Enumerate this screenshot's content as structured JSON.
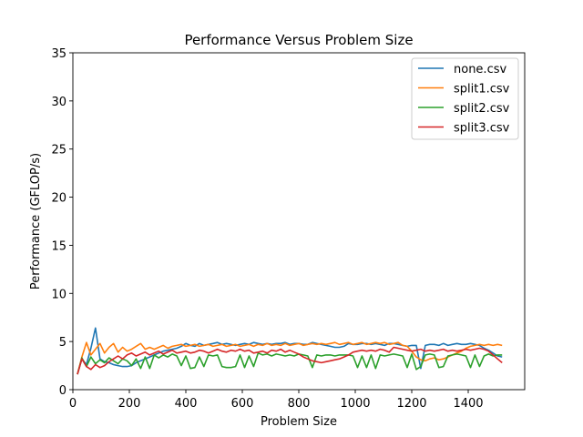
{
  "chart_data": {
    "type": "line",
    "title": "Performance Versus Problem Size",
    "xlabel": "Problem Size",
    "ylabel": "Performance (GFLOP/s)",
    "xlim": [
      0,
      1600
    ],
    "ylim": [
      0,
      35
    ],
    "xticks": [
      0,
      200,
      400,
      600,
      800,
      1000,
      1200,
      1400
    ],
    "yticks": [
      0,
      5,
      10,
      15,
      20,
      25,
      30,
      35
    ],
    "grid": false,
    "legend_position": "top-right",
    "x": [
      16,
      32,
      48,
      64,
      80,
      96,
      112,
      128,
      144,
      160,
      176,
      192,
      208,
      224,
      240,
      256,
      272,
      288,
      304,
      320,
      336,
      352,
      368,
      384,
      400,
      416,
      432,
      448,
      464,
      480,
      496,
      512,
      528,
      544,
      560,
      576,
      592,
      608,
      624,
      640,
      656,
      672,
      688,
      704,
      720,
      736,
      752,
      768,
      784,
      800,
      816,
      832,
      848,
      864,
      880,
      896,
      912,
      928,
      944,
      960,
      976,
      992,
      1008,
      1024,
      1040,
      1056,
      1072,
      1088,
      1104,
      1120,
      1136,
      1152,
      1168,
      1184,
      1200,
      1216,
      1232,
      1248,
      1264,
      1280,
      1296,
      1312,
      1328,
      1344,
      1360,
      1376,
      1392,
      1408,
      1424,
      1440,
      1456,
      1472,
      1488,
      1504,
      1520
    ],
    "series": [
      {
        "name": "none.csv",
        "color": "#1f77b4",
        "values": [
          1.6,
          3.2,
          2.6,
          4.3,
          6.4,
          3.2,
          2.9,
          2.8,
          2.6,
          2.5,
          2.4,
          2.4,
          2.5,
          2.8,
          3.0,
          3.2,
          3.4,
          3.6,
          3.8,
          4.0,
          4.1,
          4.2,
          4.3,
          4.5,
          4.8,
          4.6,
          4.5,
          4.8,
          4.6,
          4.7,
          4.8,
          4.9,
          4.7,
          4.8,
          4.7,
          4.6,
          4.7,
          4.8,
          4.7,
          4.9,
          4.8,
          4.7,
          4.8,
          4.7,
          4.8,
          4.8,
          4.9,
          4.7,
          4.8,
          4.8,
          4.7,
          4.7,
          4.9,
          4.8,
          4.7,
          4.6,
          4.5,
          4.4,
          4.4,
          4.5,
          4.8,
          4.7,
          4.7,
          4.8,
          4.8,
          4.7,
          4.8,
          4.7,
          4.6,
          4.8,
          4.8,
          4.7,
          4.6,
          4.5,
          4.6,
          4.6,
          2.2,
          4.6,
          4.7,
          4.7,
          4.6,
          4.8,
          4.6,
          4.7,
          4.8,
          4.7,
          4.7,
          4.8,
          4.7,
          4.6,
          4.3,
          4.1,
          3.8,
          3.5,
          3.4
        ]
      },
      {
        "name": "split1.csv",
        "color": "#ff7f0e",
        "values": [
          1.6,
          3.4,
          4.9,
          3.6,
          4.2,
          4.8,
          3.8,
          4.4,
          4.8,
          3.9,
          4.4,
          4.0,
          4.2,
          4.5,
          4.8,
          4.2,
          4.4,
          4.2,
          4.4,
          4.6,
          4.3,
          4.5,
          4.6,
          4.7,
          4.5,
          4.6,
          4.7,
          4.5,
          4.6,
          4.7,
          4.5,
          4.6,
          4.7,
          4.5,
          4.6,
          4.7,
          4.5,
          4.6,
          4.7,
          4.5,
          4.7,
          4.6,
          4.8,
          4.6,
          4.7,
          4.6,
          4.8,
          4.6,
          4.7,
          4.8,
          4.6,
          4.7,
          4.8,
          4.7,
          4.8,
          4.7,
          4.8,
          4.9,
          4.7,
          4.8,
          4.9,
          4.7,
          4.8,
          4.9,
          4.7,
          4.8,
          4.9,
          4.8,
          4.9,
          4.7,
          4.8,
          4.9,
          4.6,
          4.5,
          4.0,
          3.4,
          3.1,
          3.0,
          3.2,
          3.3,
          3.1,
          3.2,
          3.4,
          3.6,
          3.8,
          4.0,
          4.3,
          4.5,
          4.6,
          4.7,
          4.6,
          4.7,
          4.6,
          4.7,
          4.6
        ]
      },
      {
        "name": "split2.csv",
        "color": "#2ca02c",
        "values": [
          1.6,
          3.3,
          2.4,
          3.4,
          2.7,
          3.1,
          2.8,
          3.3,
          3.0,
          2.7,
          3.2,
          3.0,
          2.5,
          3.2,
          2.2,
          3.4,
          2.2,
          3.6,
          3.3,
          3.6,
          3.4,
          3.7,
          3.5,
          2.5,
          3.5,
          2.2,
          2.3,
          3.4,
          2.4,
          3.6,
          3.5,
          3.6,
          2.4,
          2.3,
          2.3,
          2.4,
          3.6,
          2.3,
          3.5,
          2.4,
          3.8,
          3.6,
          3.7,
          3.5,
          3.7,
          3.6,
          3.5,
          3.6,
          3.5,
          3.7,
          3.6,
          3.5,
          2.3,
          3.6,
          3.5,
          3.6,
          3.6,
          3.5,
          3.6,
          3.6,
          3.6,
          3.5,
          2.3,
          3.5,
          2.3,
          3.6,
          2.2,
          3.6,
          3.5,
          3.6,
          3.7,
          3.6,
          3.5,
          2.3,
          3.7,
          2.1,
          2.4,
          3.6,
          3.7,
          3.6,
          2.3,
          2.4,
          3.5,
          3.6,
          3.7,
          3.6,
          3.5,
          2.3,
          3.6,
          2.4,
          3.5,
          3.7,
          3.5,
          3.6,
          3.6
        ]
      },
      {
        "name": "split3.csv",
        "color": "#d62728",
        "values": [
          1.6,
          3.2,
          2.4,
          2.1,
          2.6,
          2.3,
          2.5,
          2.9,
          3.2,
          3.5,
          3.2,
          3.6,
          3.8,
          3.5,
          3.7,
          3.9,
          3.6,
          3.8,
          4.0,
          3.7,
          3.9,
          4.1,
          3.8,
          3.9,
          4.0,
          3.8,
          3.9,
          4.1,
          4.0,
          3.8,
          4.0,
          4.2,
          4.0,
          3.9,
          4.1,
          4.0,
          4.2,
          4.0,
          4.1,
          3.8,
          3.9,
          4.0,
          3.8,
          4.1,
          4.0,
          4.2,
          3.9,
          4.1,
          3.9,
          3.7,
          3.4,
          3.2,
          3.0,
          2.9,
          2.8,
          2.9,
          3.0,
          3.1,
          3.2,
          3.4,
          3.6,
          3.9,
          4.0,
          4.1,
          4.0,
          4.1,
          4.0,
          4.2,
          4.1,
          3.9,
          4.4,
          4.3,
          4.2,
          4.1,
          4.0,
          4.1,
          4.2,
          4.0,
          4.1,
          4.0,
          4.1,
          4.2,
          4.0,
          4.1,
          4.0,
          4.1,
          4.2,
          4.1,
          4.2,
          4.3,
          4.2,
          4.0,
          3.6,
          3.2,
          2.8
        ]
      }
    ]
  }
}
